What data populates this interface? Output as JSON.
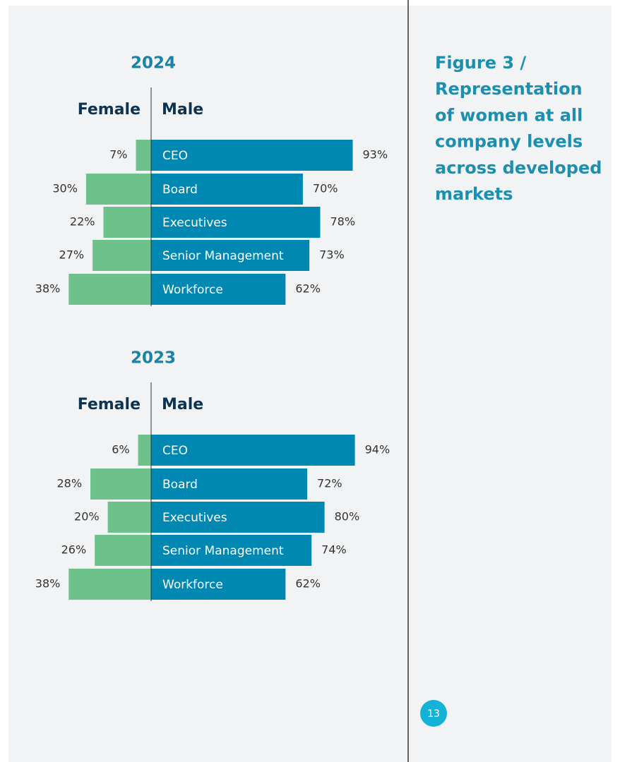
{
  "figure_title": [
    "Figure 3 /",
    "Representation",
    "of women at all",
    "company levels",
    "across developed",
    "markets"
  ],
  "page_number": "13",
  "chart_data": [
    {
      "type": "diverging_bar",
      "title": "2024",
      "categories": [
        "CEO",
        "Board",
        "Executives",
        "Senior Management",
        "Workforce"
      ],
      "series": [
        {
          "name": "Female",
          "color": "#6cc28a",
          "values": [
            7,
            30,
            22,
            27,
            38
          ],
          "value_labels": [
            "7%",
            "30%",
            "22%",
            "27%",
            "38%"
          ]
        },
        {
          "name": "Male",
          "color": "#0088b3",
          "values": [
            93,
            70,
            78,
            73,
            62
          ],
          "value_labels": [
            "93%",
            "70%",
            "78%",
            "73%",
            "62%"
          ]
        }
      ]
    },
    {
      "type": "diverging_bar",
      "title": "2023",
      "categories": [
        "CEO",
        "Board",
        "Executives",
        "Senior Management",
        "Workforce"
      ],
      "series": [
        {
          "name": "Female",
          "color": "#6cc28a",
          "values": [
            6,
            28,
            20,
            26,
            38
          ],
          "value_labels": [
            "6%",
            "28%",
            "20%",
            "26%",
            "38%"
          ]
        },
        {
          "name": "Male",
          "color": "#0088b3",
          "values": [
            94,
            72,
            80,
            74,
            62
          ],
          "value_labels": [
            "94%",
            "72%",
            "80%",
            "74%",
            "62%"
          ]
        }
      ]
    }
  ]
}
